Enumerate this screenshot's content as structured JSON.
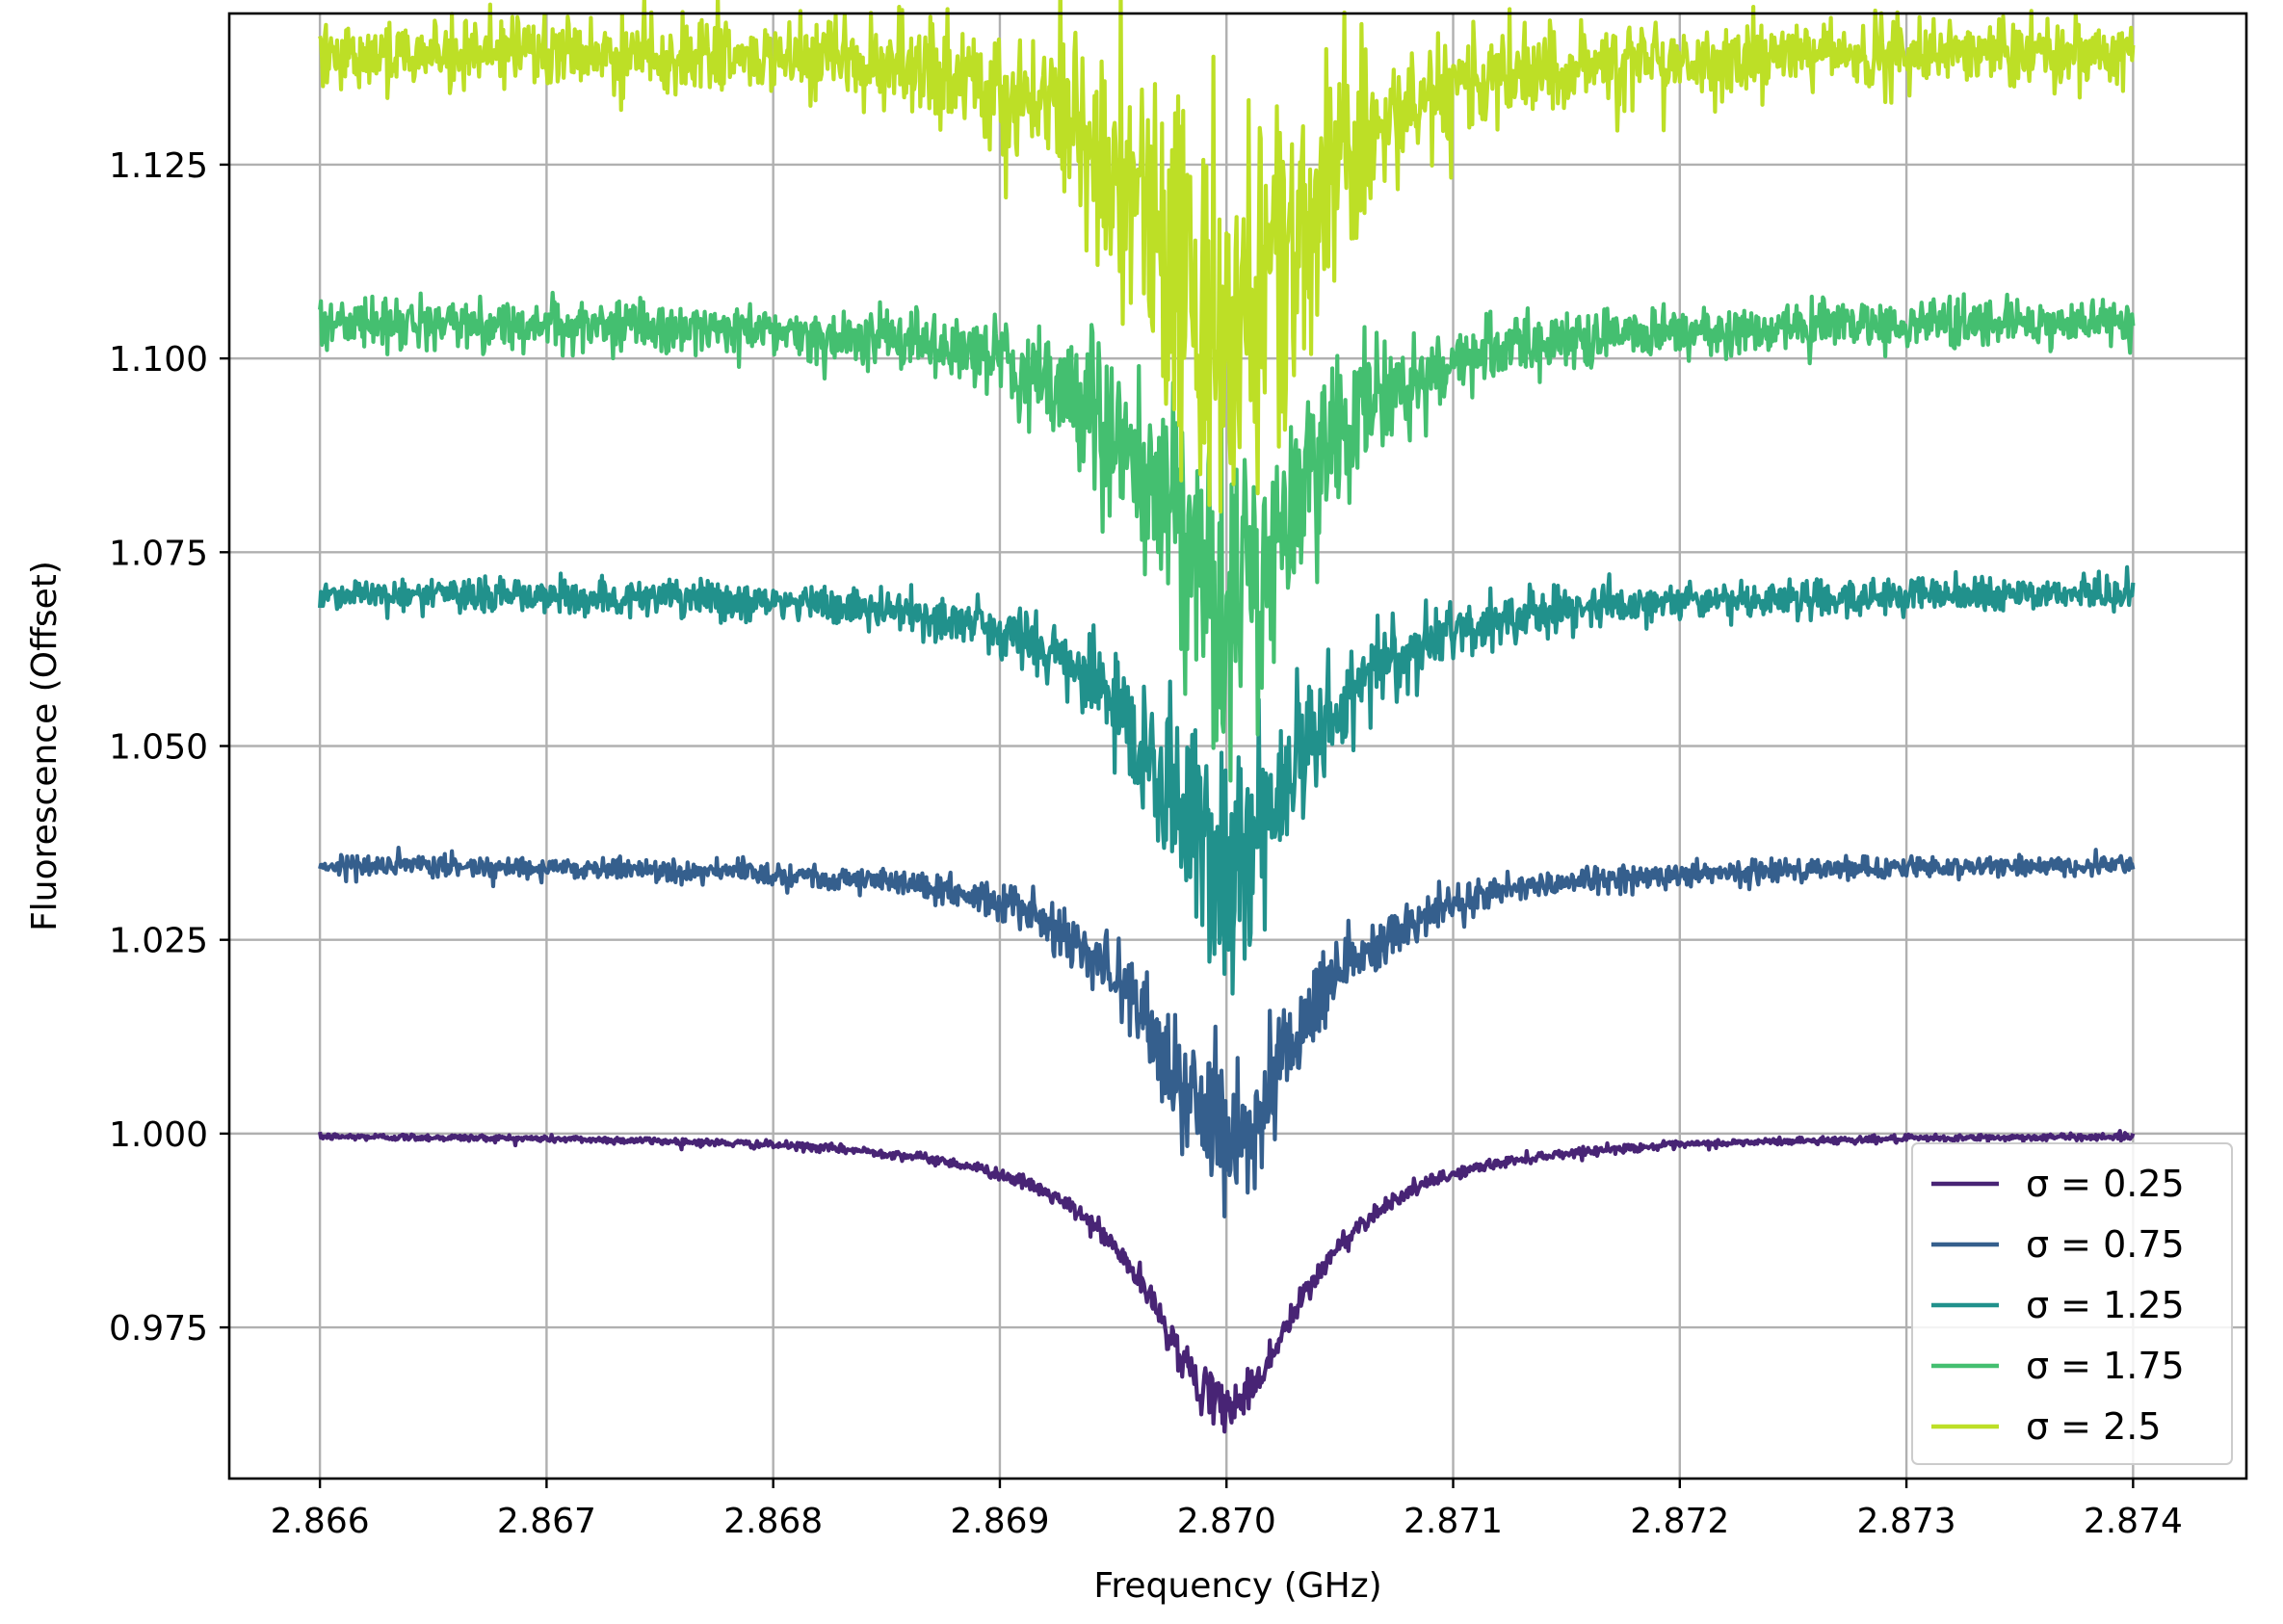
{
  "chart_data": {
    "type": "line",
    "title": "",
    "xlabel": "Frequency (GHz)",
    "ylabel": "Fluorescence (Offset)",
    "xlim": [
      2.8656,
      2.8745
    ],
    "ylim": [
      0.9555,
      1.1445
    ],
    "x_ticks": [
      2.866,
      2.867,
      2.868,
      2.869,
      2.87,
      2.871,
      2.872,
      2.873,
      2.874
    ],
    "x_tick_labels": [
      "2.866",
      "2.867",
      "2.868",
      "2.869",
      "2.870",
      "2.871",
      "2.872",
      "2.873",
      "2.874"
    ],
    "y_ticks": [
      0.975,
      1.0,
      1.025,
      1.05,
      1.075,
      1.1,
      1.125
    ],
    "y_tick_labels": [
      "0.975",
      "1.000",
      "1.025",
      "1.050",
      "1.075",
      "1.100",
      "1.125"
    ],
    "grid": true,
    "legend_position": "lower-right",
    "center_frequency": 2.87,
    "x_range": [
      2.866,
      2.874
    ],
    "series": [
      {
        "name": "σ = 0.25",
        "color": "#482475",
        "baseline": 1.0,
        "depth": 0.035,
        "noise": 0.0008
      },
      {
        "name": "σ = 0.75",
        "color": "#355f8d",
        "baseline": 1.035,
        "depth": 0.035,
        "noise": 0.0025
      },
      {
        "name": "σ = 1.25",
        "color": "#21918c",
        "baseline": 1.07,
        "depth": 0.035,
        "noise": 0.004
      },
      {
        "name": "σ = 1.75",
        "color": "#44bf70",
        "baseline": 1.105,
        "depth": 0.036,
        "noise": 0.0055
      },
      {
        "name": "σ = 2.5",
        "color": "#bddf26",
        "baseline": 1.14,
        "depth": 0.036,
        "noise": 0.008
      }
    ]
  }
}
